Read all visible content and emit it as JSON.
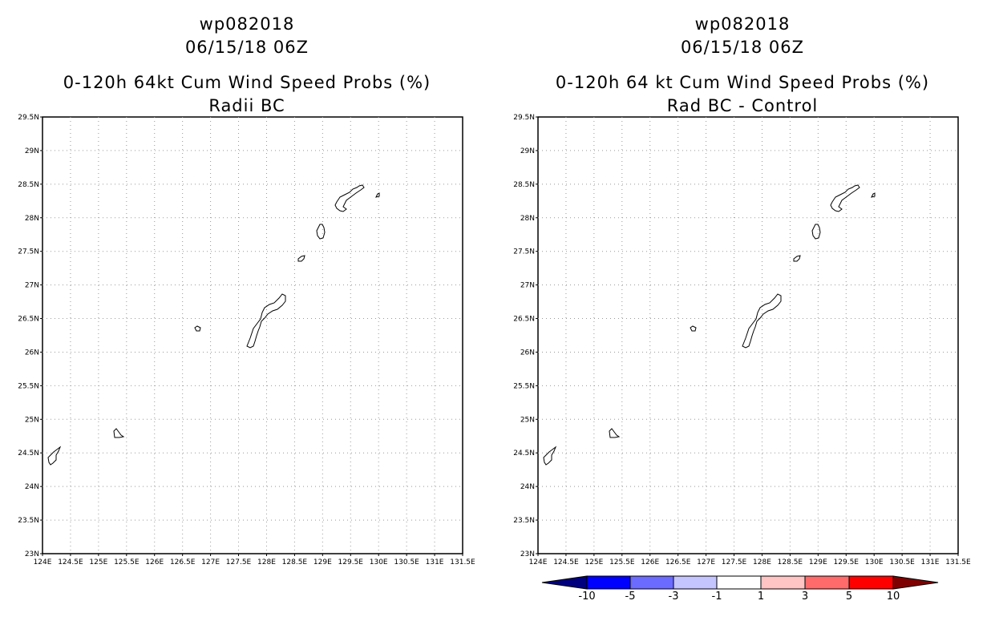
{
  "panels": [
    {
      "line1": "wp082018",
      "line2": "06/15/18 06Z",
      "line3": "0-120h 64kt Cum Wind Speed Probs (%)",
      "line4": "Radii BC"
    },
    {
      "line1": "wp082018",
      "line2": "06/15/18 06Z",
      "line3": "0-120h 64 kt Cum Wind Speed Probs (%)",
      "line4": "Rad BC - Control"
    }
  ],
  "axes": {
    "lat_labels": [
      "29.5N",
      "29N",
      "28.5N",
      "28N",
      "27.5N",
      "27N",
      "26.5N",
      "26N",
      "25.5N",
      "25N",
      "24.5N",
      "24N",
      "23.5N",
      "23N"
    ],
    "lon_labels": [
      "124E",
      "124.5E",
      "125E",
      "125.5E",
      "126E",
      "126.5E",
      "127E",
      "127.5E",
      "128E",
      "128.5E",
      "129E",
      "129.5E",
      "130E",
      "130.5E",
      "131E",
      "131.5E"
    ]
  },
  "colorbar": {
    "colors": [
      "#00007f",
      "#0000ff",
      "#6b6bff",
      "#c4c4ff",
      "#ffffff",
      "#ffc4c4",
      "#ff6b6b",
      "#ff0000",
      "#7f0000"
    ],
    "labels": [
      "-10",
      "-5",
      "-3",
      "-1",
      "1",
      "3",
      "5",
      "10"
    ]
  }
}
